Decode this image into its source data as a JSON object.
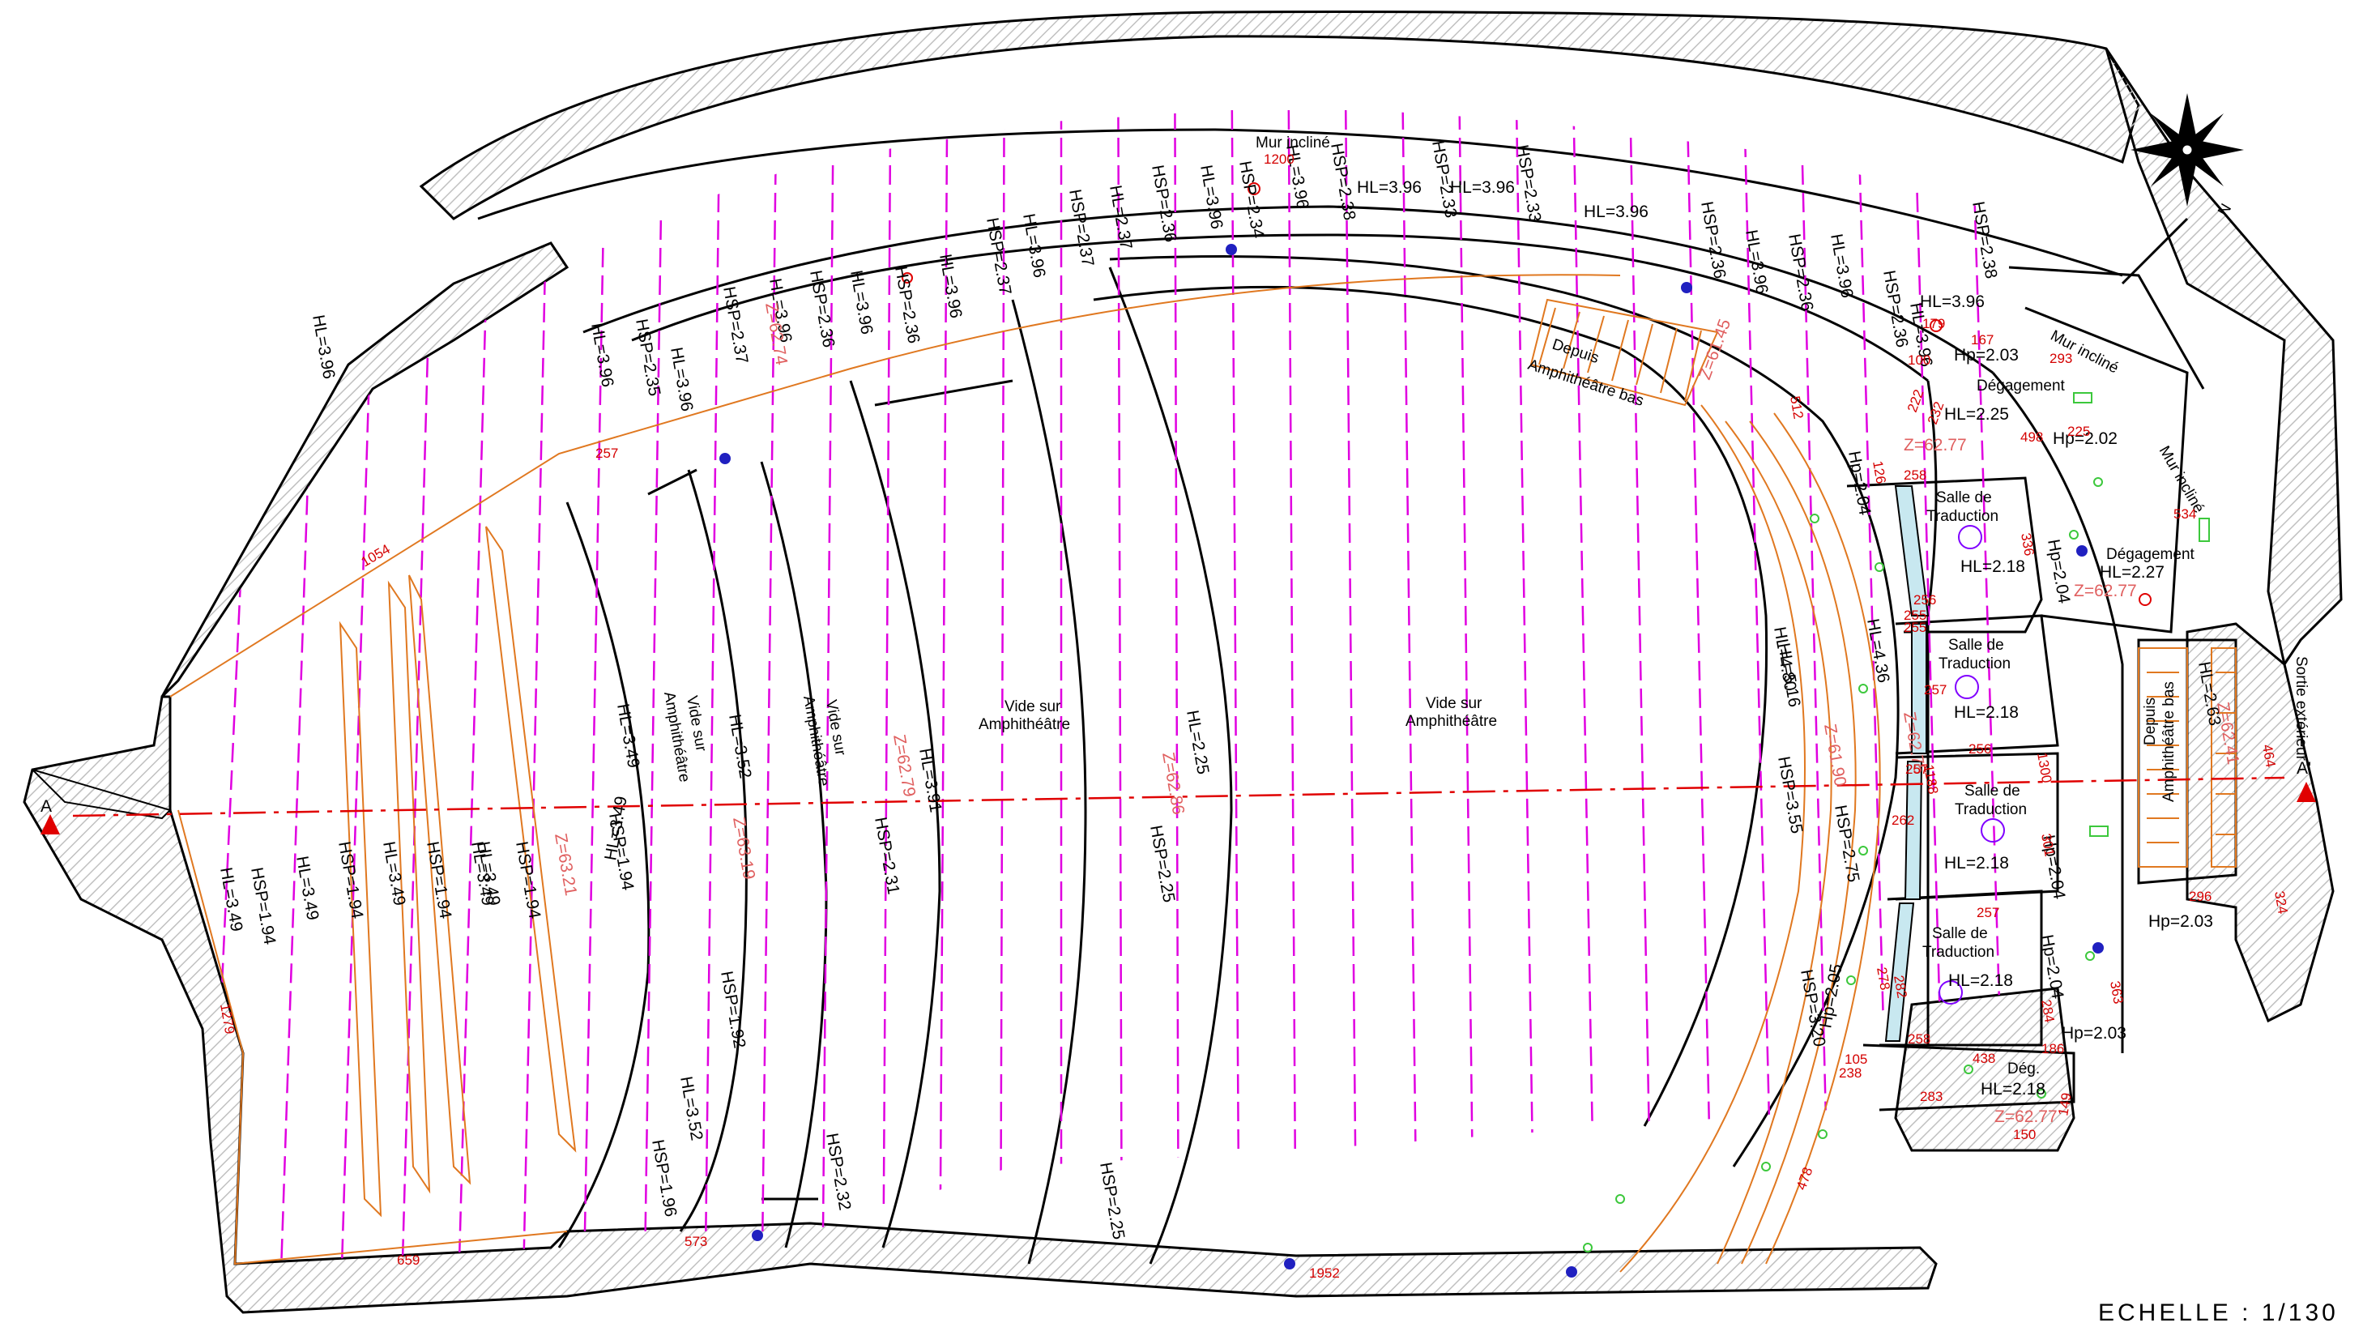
{
  "colors": {
    "outline": "#000000",
    "hatch": "#c8c8c8",
    "magenta": "#e000e0",
    "orange": "#e07820",
    "red": "#d40000",
    "section_line": "#e00000",
    "elevation": "#e06060",
    "green_marker": "#3cc83c",
    "purple_marker": "#8000ff",
    "blue_marker": "#2020c0"
  },
  "icons": [
    "compass-rose-icon",
    "section-arrow-icon",
    "light-fixture-icon",
    "smoke-detector-icon"
  ],
  "compass": {
    "north_label": "N"
  },
  "scale_label": "ECHELLE : 1/130",
  "section_marks": {
    "left": "A",
    "right": "A'"
  },
  "room_labels": [
    {
      "id": "mur-incline-top",
      "text": "Mur incliné"
    },
    {
      "id": "mur-incline-right-1",
      "text": "Mur incliné"
    },
    {
      "id": "mur-incline-right-2",
      "text": "Mur incliné"
    },
    {
      "id": "degagement-1",
      "text": "Dégagement"
    },
    {
      "id": "degagement-2",
      "text": "Dégagement"
    },
    {
      "id": "deg-short",
      "text": "Dég."
    },
    {
      "id": "depuis-1",
      "text": "Depuis"
    },
    {
      "id": "depuis-1b",
      "text": "Amphithéâtre bas"
    },
    {
      "id": "depuis-2",
      "text": "Depuis"
    },
    {
      "id": "depuis-2b",
      "text": "Amphithéâtre bas"
    },
    {
      "id": "salle-1a",
      "text": "Salle de"
    },
    {
      "id": "salle-1b",
      "text": "Traduction"
    },
    {
      "id": "salle-2a",
      "text": "Salle de"
    },
    {
      "id": "salle-2b",
      "text": "Traduction"
    },
    {
      "id": "salle-3a",
      "text": "Salle de"
    },
    {
      "id": "salle-3b",
      "text": "Traduction"
    },
    {
      "id": "salle-4a",
      "text": "Salle de"
    },
    {
      "id": "salle-4b",
      "text": "Traduction"
    },
    {
      "id": "vide-1a",
      "text": "Vide sur"
    },
    {
      "id": "vide-1b",
      "text": "Amphithéâtre"
    },
    {
      "id": "vide-2a",
      "text": "Vide sur"
    },
    {
      "id": "vide-2b",
      "text": "Amphithéâtre"
    },
    {
      "id": "vide-3a",
      "text": "Vide sur"
    },
    {
      "id": "vide-3b",
      "text": "Amphithéâtre"
    },
    {
      "id": "vide-4a",
      "text": "Vide sur"
    },
    {
      "id": "vide-4b",
      "text": "Amphithéâtre"
    },
    {
      "id": "sortie",
      "text": "Sortie extérieur"
    }
  ],
  "height_labels": [
    "HL=3.96",
    "HSP=2.35",
    "HL=3.96",
    "HSP=2.37",
    "HL=3.96",
    "HSP=2.36",
    "HL=3.96",
    "HSP=2.36",
    "HL=3.96",
    "HSP=2.37",
    "HL=3.96",
    "HSP=2.37",
    "HL=2.37",
    "HSP=2.36",
    "HL=3.96",
    "HSP=2.34",
    "HL=3.96",
    "HSP=2.38",
    "HL=3.96",
    "HSP=2.33",
    "HL=3.96",
    "HSP=2.33",
    "HL=3.96",
    "HSP=2.36",
    "HL=3.96",
    "HSP=2.36",
    "HL=3.96",
    "HSP=2.36",
    "HL=3.96",
    "HSP=2.38",
    "HL=3.96",
    "Hp=2.03",
    "HL=2.25",
    "Hp=2.02",
    "Hp=2.04",
    "HL=2.18",
    "Hp=2.04",
    "HL=2.27",
    "HL=4.36",
    "HL=2.18",
    "HL=4.80",
    "HL=5.16",
    "HSP=3.55",
    "HSP=2.75",
    "HL=2.18",
    "Hp=2.04",
    "HL=2.18",
    "Hp=2.04",
    "Hp=2.03",
    "HL=2.63",
    "Hp=2.03",
    "HL=2.18",
    "Hp=2.05",
    "HSP=3.20",
    "HL=3.49",
    "HL=3.52",
    "HL=3.91",
    "HL=2.25",
    "HSP=2.31",
    "HSP=2.25",
    "HSP=1.94",
    "HL=3.49",
    "HL=3.49",
    "HSP=1.94",
    "HL=3.49",
    "HSP=1.94",
    "HL=3.49",
    "HSP=1.94",
    "HL=3.49",
    "HSP=1.94",
    "HL=3.49",
    "HSP=1.92",
    "HL=3.52",
    "HSP=1.96",
    "HSP=2.32",
    "HSP=2.25",
    "HL=3.96"
  ],
  "elevation_labels": [
    "Z=62.74",
    "Z=61.45",
    "Z=62.77",
    "Z=62.77",
    "Z=62.41",
    "Z=62.77",
    "Z=62.75",
    "Z=61.90",
    "Z=62.79",
    "Z=62.86",
    "Z=63.19",
    "Z=63.21"
  ],
  "dimension_labels": [
    "1200",
    "1054",
    "257",
    "1279",
    "659",
    "573",
    "1952",
    "478",
    "512",
    "222",
    "232",
    "179",
    "167",
    "100",
    "293",
    "498",
    "225",
    "534",
    "258",
    "126",
    "256",
    "255",
    "255",
    "257",
    "256",
    "257",
    "1188",
    "262",
    "257",
    "258",
    "278",
    "282",
    "1300",
    "464",
    "324",
    "296",
    "363",
    "301",
    "284",
    "186",
    "105",
    "283",
    "438",
    "150",
    "149",
    "336",
    "238"
  ]
}
